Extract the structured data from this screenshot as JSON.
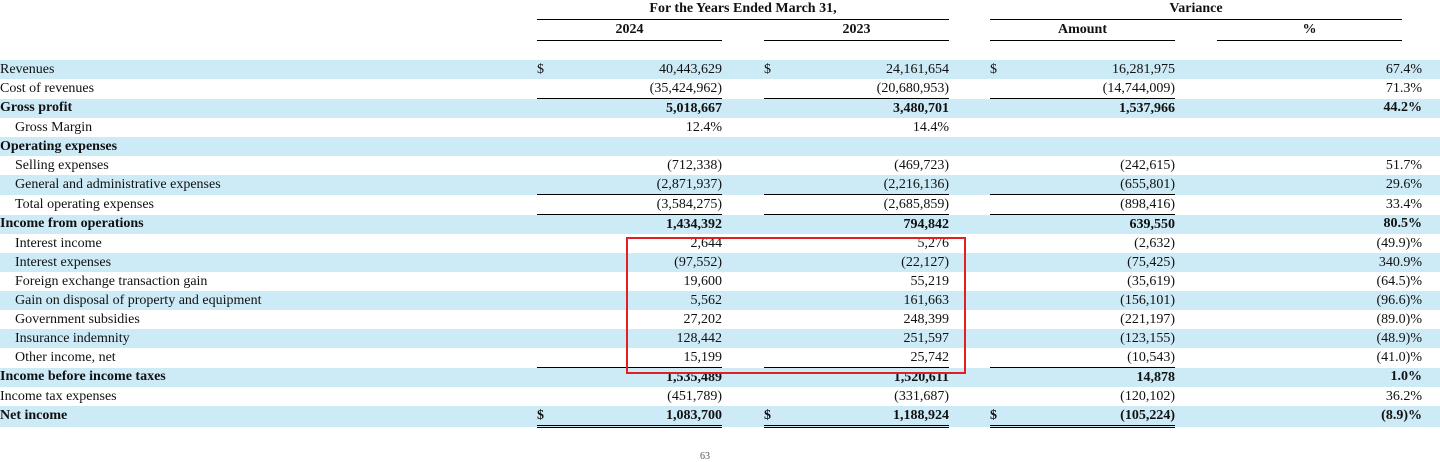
{
  "header": {
    "years_title": "For the Years Ended March 31,",
    "variance_title": "Variance",
    "col_2024": "2024",
    "col_2023": "2023",
    "col_amount": "Amount",
    "col_pct": "%"
  },
  "currency_symbol": "$",
  "rows": [
    {
      "label": "Revenues",
      "y2024": "40,443,629",
      "y2023": "24,161,654",
      "amount": "16,281,975",
      "pct": "67.4%",
      "cur": true
    },
    {
      "label": "Cost of revenues",
      "y2024": "(35,424,962)",
      "y2023": "(20,680,953)",
      "amount": "(14,744,009)",
      "pct": "71.3%"
    },
    {
      "label": "Gross profit",
      "y2024": "5,018,667",
      "y2023": "3,480,701",
      "amount": "1,537,966",
      "pct": "44.2%",
      "bold": true
    },
    {
      "label": "Gross Margin",
      "y2024": "12.4%",
      "y2023": "14.4%",
      "amount": "",
      "pct": "",
      "indent": true
    },
    {
      "label": "Operating expenses",
      "y2024": "",
      "y2023": "",
      "amount": "",
      "pct": "",
      "bold": true
    },
    {
      "label": "Selling expenses",
      "y2024": "(712,338)",
      "y2023": "(469,723)",
      "amount": "(242,615)",
      "pct": "51.7%",
      "indent": true
    },
    {
      "label": "General and administrative expenses",
      "y2024": "(2,871,937)",
      "y2023": "(2,216,136)",
      "amount": "(655,801)",
      "pct": "29.6%",
      "indent": true
    },
    {
      "label": "Total operating expenses",
      "y2024": "(3,584,275)",
      "y2023": "(2,685,859)",
      "amount": "(898,416)",
      "pct": "33.4%",
      "indent": true
    },
    {
      "label": "Income from operations",
      "y2024": "1,434,392",
      "y2023": "794,842",
      "amount": "639,550",
      "pct": "80.5%",
      "bold": true
    },
    {
      "label": "Interest income",
      "y2024": "2,644",
      "y2023": "5,276",
      "amount": "(2,632)",
      "pct": "(49.9)%",
      "indent": true
    },
    {
      "label": "Interest expenses",
      "y2024": "(97,552)",
      "y2023": "(22,127)",
      "amount": "(75,425)",
      "pct": "340.9%",
      "indent": true
    },
    {
      "label": "Foreign exchange transaction gain",
      "y2024": "19,600",
      "y2023": "55,219",
      "amount": "(35,619)",
      "pct": "(64.5)%",
      "indent": true
    },
    {
      "label": "Gain on disposal of property and equipment",
      "y2024": "5,562",
      "y2023": "161,663",
      "amount": "(156,101)",
      "pct": "(96.6)%",
      "indent": true
    },
    {
      "label": "Government subsidies",
      "y2024": "27,202",
      "y2023": "248,399",
      "amount": "(221,197)",
      "pct": "(89.0)%",
      "indent": true
    },
    {
      "label": "Insurance indemnity",
      "y2024": "128,442",
      "y2023": "251,597",
      "amount": "(123,155)",
      "pct": "(48.9)%",
      "indent": true
    },
    {
      "label": "Other income, net",
      "y2024": "15,199",
      "y2023": "25,742",
      "amount": "(10,543)",
      "pct": "(41.0)%",
      "indent": true
    },
    {
      "label": "Income before income taxes",
      "y2024": "1,535,489",
      "y2023": "1,520,611",
      "amount": "14,878",
      "pct": "1.0%",
      "bold": true
    },
    {
      "label": "Income tax expenses",
      "y2024": "(451,789)",
      "y2023": "(331,687)",
      "amount": "(120,102)",
      "pct": "36.2%"
    },
    {
      "label": "Net income",
      "y2024": "1,083,700",
      "y2023": "1,188,924",
      "amount": "(105,224)",
      "pct": "(8.9)%",
      "bold": true,
      "cur": true
    }
  ],
  "page_number": "63"
}
